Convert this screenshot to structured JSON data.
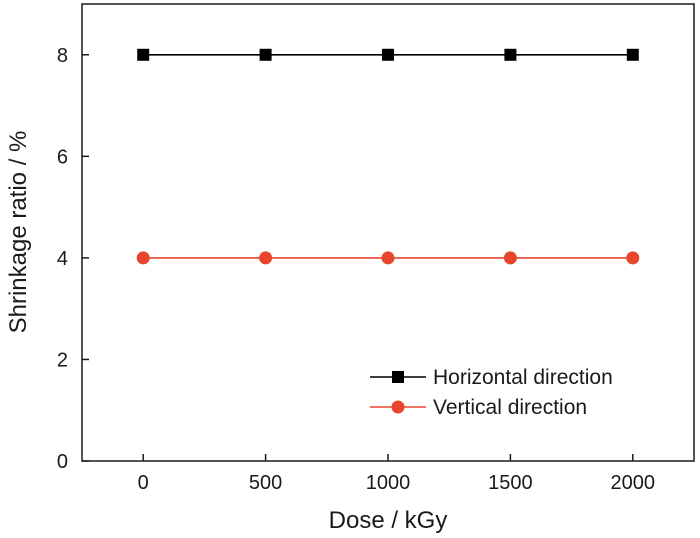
{
  "chart_data": {
    "type": "line",
    "xlabel": "Dose / kGy",
    "ylabel": "Shrinkage ratio / %",
    "x": [
      0,
      500,
      1000,
      1500,
      2000
    ],
    "xlim": [
      -250,
      2250
    ],
    "ylim": [
      0,
      9
    ],
    "xticks": [
      0,
      500,
      1000,
      1500,
      2000
    ],
    "yticks": [
      0,
      2,
      4,
      6,
      8
    ],
    "grid": false,
    "legend_position": "bottom-right",
    "series": [
      {
        "name": "Horizontal direction",
        "values": [
          8,
          8,
          8,
          8,
          8
        ],
        "color": "#000000",
        "marker": "square"
      },
      {
        "name": "Vertical direction",
        "values": [
          4,
          4,
          4,
          4,
          4
        ],
        "color": "#e8452c",
        "marker": "circle"
      }
    ]
  }
}
